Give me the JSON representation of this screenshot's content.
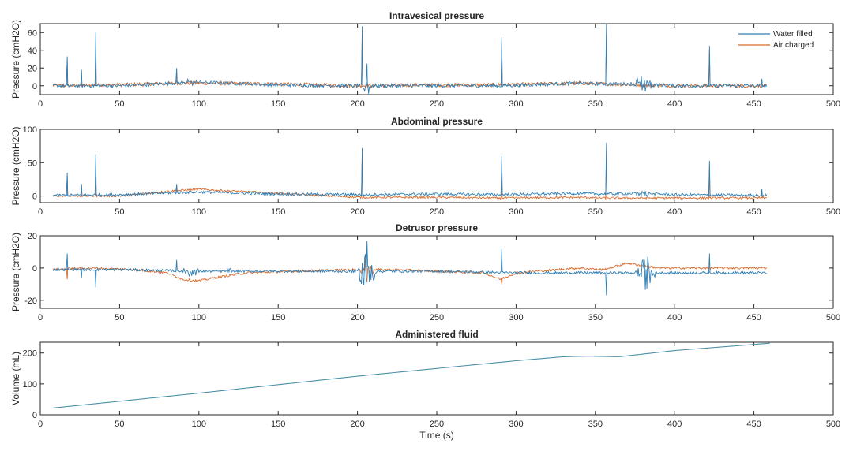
{
  "colors": {
    "water": "#2F7FB5",
    "air": "#D96A2B",
    "volume": "#4A8FA8",
    "axis": "#262626"
  },
  "xlabel": "Time (s)",
  "chart_data": [
    {
      "type": "line",
      "title": "Intravesical pressure",
      "ylabel": "Pressure (cmH2O)",
      "xlim": [
        0,
        500
      ],
      "ylim": [
        -10,
        70
      ],
      "xticks": [
        "0",
        "50",
        "100",
        "150",
        "200",
        "250",
        "300",
        "350",
        "400",
        "450",
        "500"
      ],
      "yticks": [
        0,
        20,
        40,
        60
      ],
      "yticklabels": [
        "0",
        "20",
        "40",
        "60"
      ],
      "legend": {
        "placement": "top-right",
        "entries": [
          "Water filled",
          "Air charged"
        ]
      },
      "series": [
        {
          "name": "Water filled",
          "color_key": "water",
          "baseline": [
            [
              8,
              0
            ],
            [
              50,
              0
            ],
            [
              85,
              3
            ],
            [
              100,
              4
            ],
            [
              150,
              1
            ],
            [
              200,
              0
            ],
            [
              250,
              0
            ],
            [
              290,
              0
            ],
            [
              340,
              3
            ],
            [
              355,
              2
            ],
            [
              380,
              2
            ],
            [
              400,
              0
            ],
            [
              450,
              0
            ],
            [
              458,
              0
            ]
          ],
          "noise": 2.0,
          "spikes": [
            [
              17,
              33
            ],
            [
              26,
              18
            ],
            [
              35,
              61
            ],
            [
              86,
              20
            ],
            [
              203,
              67
            ],
            [
              206,
              25
            ],
            [
              291,
              55
            ],
            [
              357,
              72
            ],
            [
              422,
              45
            ],
            [
              455,
              8
            ]
          ],
          "bursts": [
            [
              380,
              8,
              12
            ],
            [
              206,
              4,
              14
            ],
            [
              95,
              5,
              4
            ]
          ]
        },
        {
          "name": "Air charged",
          "color_key": "air",
          "baseline": [
            [
              8,
              0
            ],
            [
              50,
              1
            ],
            [
              85,
              3
            ],
            [
              100,
              3
            ],
            [
              150,
              2
            ],
            [
              200,
              0
            ],
            [
              250,
              1
            ],
            [
              290,
              1
            ],
            [
              340,
              3
            ],
            [
              355,
              2
            ],
            [
              380,
              1
            ],
            [
              400,
              0
            ],
            [
              450,
              0
            ],
            [
              458,
              0
            ]
          ],
          "noise": 2.0,
          "spikes": [
            [
              17,
              30
            ],
            [
              26,
              15
            ],
            [
              35,
              44
            ],
            [
              86,
              15
            ],
            [
              203,
              64
            ],
            [
              291,
              51
            ],
            [
              357,
              58
            ],
            [
              422,
              40
            ],
            [
              455,
              6
            ]
          ],
          "bursts": []
        }
      ]
    },
    {
      "type": "line",
      "title": "Abdominal pressure",
      "ylabel": "Pressure (cmH2O)",
      "xlim": [
        0,
        500
      ],
      "ylim": [
        -10,
        100
      ],
      "xticks": [
        "0",
        "50",
        "100",
        "150",
        "200",
        "250",
        "300",
        "350",
        "400",
        "450",
        "500"
      ],
      "yticks": [
        0,
        50,
        100
      ],
      "yticklabels": [
        "0",
        "50",
        "100"
      ],
      "series": [
        {
          "name": "Water filled",
          "color_key": "water",
          "baseline": [
            [
              8,
              1
            ],
            [
              50,
              2
            ],
            [
              85,
              5
            ],
            [
              100,
              6
            ],
            [
              150,
              3
            ],
            [
              200,
              2
            ],
            [
              250,
              3
            ],
            [
              290,
              2
            ],
            [
              340,
              4
            ],
            [
              355,
              3
            ],
            [
              380,
              4
            ],
            [
              400,
              2
            ],
            [
              450,
              1
            ],
            [
              458,
              1
            ]
          ],
          "noise": 2.0,
          "spikes": [
            [
              17,
              35
            ],
            [
              26,
              18
            ],
            [
              35,
              63
            ],
            [
              86,
              18
            ],
            [
              203,
              72
            ],
            [
              291,
              60
            ],
            [
              357,
              80
            ],
            [
              422,
              53
            ],
            [
              455,
              10
            ]
          ],
          "bursts": [
            [
              380,
              7,
              6
            ],
            [
              206,
              3,
              5
            ]
          ]
        },
        {
          "name": "Air charged",
          "color_key": "air",
          "baseline": [
            [
              8,
              0
            ],
            [
              50,
              0
            ],
            [
              85,
              8
            ],
            [
              100,
              10
            ],
            [
              150,
              4
            ],
            [
              200,
              -2
            ],
            [
              250,
              -2
            ],
            [
              290,
              -3
            ],
            [
              340,
              -2
            ],
            [
              355,
              -3
            ],
            [
              380,
              -3
            ],
            [
              400,
              -3
            ],
            [
              450,
              -3
            ],
            [
              458,
              -3
            ]
          ],
          "noise": 1.5,
          "spikes": [
            [
              17,
              30
            ],
            [
              26,
              15
            ],
            [
              35,
              45
            ],
            [
              86,
              14
            ],
            [
              203,
              70
            ],
            [
              291,
              55
            ],
            [
              357,
              70
            ],
            [
              422,
              42
            ],
            [
              455,
              6
            ]
          ],
          "bursts": []
        }
      ]
    },
    {
      "type": "line",
      "title": "Detrusor pressure",
      "ylabel": "Pressure (cmH2O)",
      "xlim": [
        0,
        500
      ],
      "ylim": [
        -25,
        20
      ],
      "xticks": [
        "0",
        "50",
        "100",
        "150",
        "200",
        "250",
        "300",
        "350",
        "400",
        "450",
        "500"
      ],
      "yticks": [
        -20,
        0,
        20
      ],
      "yticklabels": [
        "-20",
        "0",
        "20"
      ],
      "series": [
        {
          "name": "Water filled",
          "color_key": "water",
          "baseline": [
            [
              8,
              -1
            ],
            [
              50,
              -1
            ],
            [
              100,
              -2
            ],
            [
              150,
              -2
            ],
            [
              200,
              -2
            ],
            [
              250,
              -2
            ],
            [
              300,
              -3
            ],
            [
              340,
              -3
            ],
            [
              380,
              -3
            ],
            [
              420,
              -3
            ],
            [
              458,
              -3
            ]
          ],
          "noise": 0.8,
          "spikes": [
            [
              17,
              9
            ],
            [
              26,
              -6
            ],
            [
              35,
              -12
            ],
            [
              86,
              5
            ],
            [
              291,
              12
            ],
            [
              357,
              -17
            ],
            [
              422,
              9
            ]
          ],
          "bursts": [
            [
              206,
              6,
              22
            ],
            [
              382,
              7,
              12
            ],
            [
              95,
              6,
              4
            ],
            [
              120,
              3,
              1.5
            ]
          ]
        },
        {
          "name": "Air charged",
          "color_key": "air",
          "baseline": [
            [
              8,
              -1
            ],
            [
              30,
              0
            ],
            [
              60,
              -1
            ],
            [
              80,
              -3
            ],
            [
              90,
              -7
            ],
            [
              100,
              -8
            ],
            [
              110,
              -6
            ],
            [
              130,
              -3
            ],
            [
              160,
              -2
            ],
            [
              200,
              -1
            ],
            [
              220,
              -1
            ],
            [
              250,
              -2
            ],
            [
              280,
              -3
            ],
            [
              290,
              -7
            ],
            [
              300,
              -3
            ],
            [
              340,
              0
            ],
            [
              355,
              -1
            ],
            [
              370,
              3
            ],
            [
              390,
              0
            ],
            [
              420,
              0
            ],
            [
              458,
              0
            ]
          ],
          "noise": 0.7,
          "spikes": [
            [
              17,
              -7
            ],
            [
              291,
              -10
            ]
          ],
          "bursts": [
            [
              206,
              5,
              10
            ]
          ]
        }
      ]
    },
    {
      "type": "line",
      "title": "Administered fluid",
      "ylabel": "Volume (mL)",
      "xlim": [
        0,
        500
      ],
      "ylim": [
        0,
        235
      ],
      "xticks": [
        "0",
        "50",
        "100",
        "150",
        "200",
        "250",
        "300",
        "350",
        "400",
        "450",
        "500"
      ],
      "yticks": [
        0,
        100,
        200
      ],
      "yticklabels": [
        "0",
        "100",
        "200"
      ],
      "series": [
        {
          "name": "Volume",
          "color_key": "volume",
          "baseline": [
            [
              8,
              22
            ],
            [
              100,
              70
            ],
            [
              200,
              125
            ],
            [
              300,
              175
            ],
            [
              330,
              188
            ],
            [
              345,
              190
            ],
            [
              365,
              188
            ],
            [
              400,
              208
            ],
            [
              460,
              232
            ]
          ],
          "noise": 0,
          "spikes": [],
          "bursts": []
        }
      ]
    }
  ]
}
